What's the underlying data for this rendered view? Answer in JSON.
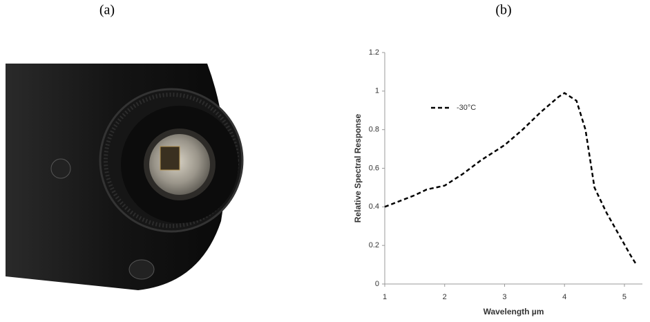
{
  "panel_labels": [
    "(a)",
    "(b)"
  ],
  "chart_data": {
    "type": "line",
    "x_label": "Wavelength µm",
    "y_label": "Relative Spectral Response",
    "x": [
      1,
      1.5,
      1.7,
      2,
      2.3,
      2.6,
      3,
      3.3,
      3.6,
      3.9,
      4.0,
      4.2,
      4.35,
      4.5,
      4.7,
      4.9,
      5.1,
      5.2
    ],
    "series": [
      {
        "name": "-30°C",
        "color": "#000000",
        "values": [
          0.4,
          0.46,
          0.49,
          0.51,
          0.57,
          0.64,
          0.72,
          0.8,
          0.89,
          0.97,
          0.99,
          0.95,
          0.8,
          0.5,
          0.37,
          0.26,
          0.15,
          0.1
        ]
      }
    ],
    "line_style": "dashed",
    "xlim": [
      1,
      5.3
    ],
    "xticks": [
      1,
      2,
      3,
      4,
      5
    ],
    "ylim": [
      0,
      1.2
    ],
    "yticks": [
      0,
      0.2,
      0.4,
      0.6,
      0.8,
      1,
      1.2
    ],
    "legend": "upper-left"
  }
}
